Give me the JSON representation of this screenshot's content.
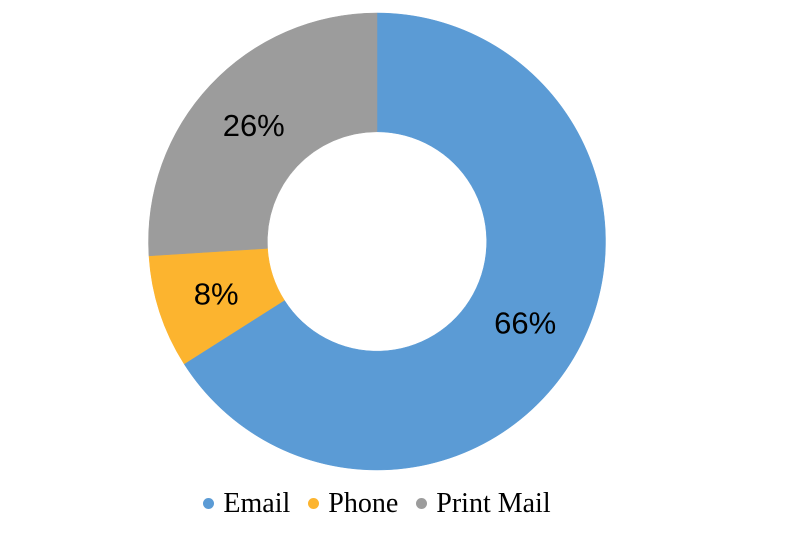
{
  "chart_data": {
    "type": "pie",
    "subtype": "donut",
    "categories": [
      "Email",
      "Phone",
      "Print Mail"
    ],
    "values": [
      66,
      8,
      26
    ],
    "labels": [
      "66%",
      "8%",
      "26%"
    ],
    "colors": [
      "#5B9BD5",
      "#FCB42F",
      "#9C9C9C"
    ],
    "label_color": "#000000",
    "background": "#FFFFFF",
    "start_angle_deg": 0,
    "direction": "clockwise",
    "hole_ratio": 0.48,
    "legend": {
      "position": "bottom",
      "marker": "circle",
      "entries": [
        "Email",
        "Phone",
        "Print Mail"
      ]
    }
  }
}
